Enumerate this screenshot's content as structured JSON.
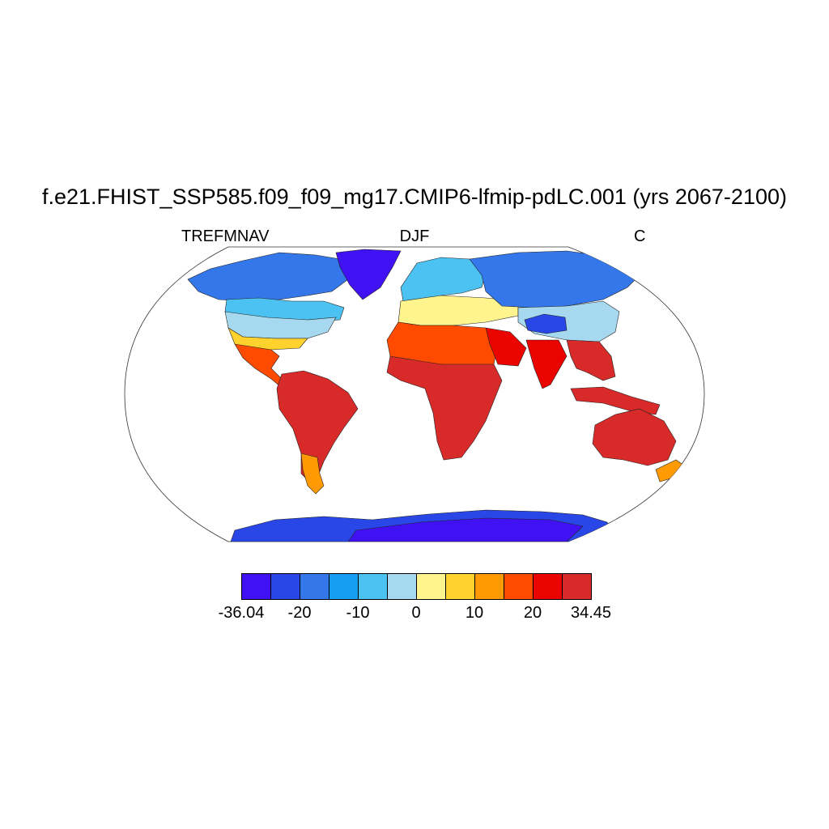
{
  "title": "f.e21.FHIST_SSP585.f09_f09_mg17.CMIP6-lfmip-pdLC.001 (yrs 2067-2100)",
  "subtitle_left": "TREFMNAV",
  "subtitle_center": "DJF",
  "subtitle_right": "C",
  "colorbar": {
    "colors": [
      "#4011f2",
      "#2946e6",
      "#3477ea",
      "#169ff2",
      "#4cc2f2",
      "#a6d9ef",
      "#fff48d",
      "#ffd22d",
      "#ff9a04",
      "#ff4b00",
      "#eb0300",
      "#d72a29"
    ],
    "labels": [
      "-36.04",
      "-20",
      "-10",
      "0",
      "10",
      "20",
      "34.45"
    ]
  },
  "map": {
    "projection": "Robinson",
    "variable": "TREFMNAV",
    "season": "DJF",
    "units": "C",
    "regions": {
      "greenland": "#4011f2",
      "antarctica": "#2946e6",
      "antarctica_interior": "#4011f2",
      "canada_north": "#3477ea",
      "canada_south": "#4cc2f2",
      "usa": "#a6d9ef",
      "usa_south": "#ffd22d",
      "mexico_central_america": "#ff4b00",
      "south_america": "#d72a29",
      "patagonia": "#ff9a04",
      "europe": "#4cc2f2",
      "mediterranean": "#fff48d",
      "siberia": "#3477ea",
      "tibet": "#2946e6",
      "china": "#a6d9ef",
      "sahara": "#ff4b00",
      "africa_tropics": "#d72a29",
      "arabia": "#eb0300",
      "india": "#eb0300",
      "southeast_asia": "#d72a29",
      "australia": "#d72a29",
      "new_zealand": "#ff9a04"
    }
  }
}
